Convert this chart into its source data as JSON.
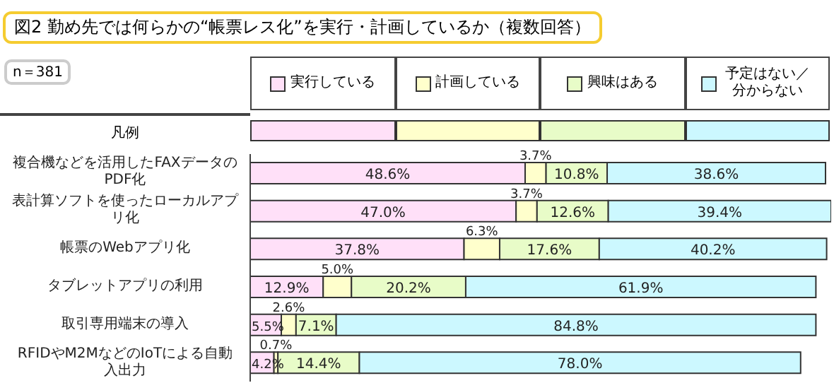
{
  "chart_data": {
    "type": "bar",
    "orientation": "horizontal",
    "stacked": true,
    "title": "図2 勤め先では何らかの“帳票レス化”を実行・計画しているか（複数回答）",
    "annotations": [
      "n＝381"
    ],
    "legend": "top",
    "legend_title": "凡例",
    "tick_labels": "y",
    "xlim": [
      0,
      102.7
    ],
    "categories": [
      "複合機などを活用したFAXデータのPDF化",
      "表計算ソフトを使ったローカルアプリ化",
      "帳票のWebアプリ化",
      "タブレットアプリの利用",
      "取引専用端末の導入",
      "RFIDやM2MなどのIoTによる自動入出力"
    ],
    "series": [
      {
        "name": "実行している",
        "color": "#ffe0f8",
        "values": [
          48.6,
          47.0,
          37.8,
          12.9,
          5.5,
          4.2
        ],
        "value_labels": [
          "48.6%",
          "47.0%",
          "37.8%",
          "12.9%",
          "5.5%",
          "4.2%"
        ]
      },
      {
        "name": "計画している",
        "color": "#ffffcc",
        "values": [
          3.7,
          3.7,
          6.3,
          5.0,
          2.6,
          0.7
        ],
        "value_labels": [
          "3.7%",
          "3.7%",
          "6.3%",
          "5.0%",
          "2.6%",
          "0.7%"
        ]
      },
      {
        "name": "興味はある",
        "color": "#e8fcc8",
        "values": [
          10.8,
          12.6,
          17.6,
          20.2,
          7.1,
          14.4
        ],
        "value_labels": [
          "10.8%",
          "12.6%",
          "17.6%",
          "20.2%",
          "7.1%",
          "14.4%"
        ]
      },
      {
        "name": "予定はない／分からない",
        "color": "#ccf8ff",
        "values": [
          38.6,
          39.4,
          40.2,
          61.9,
          84.8,
          78.0
        ],
        "value_labels": [
          "38.6%",
          "39.4%",
          "40.2%",
          "61.9%",
          "84.8%",
          "78.0%"
        ]
      }
    ]
  }
}
